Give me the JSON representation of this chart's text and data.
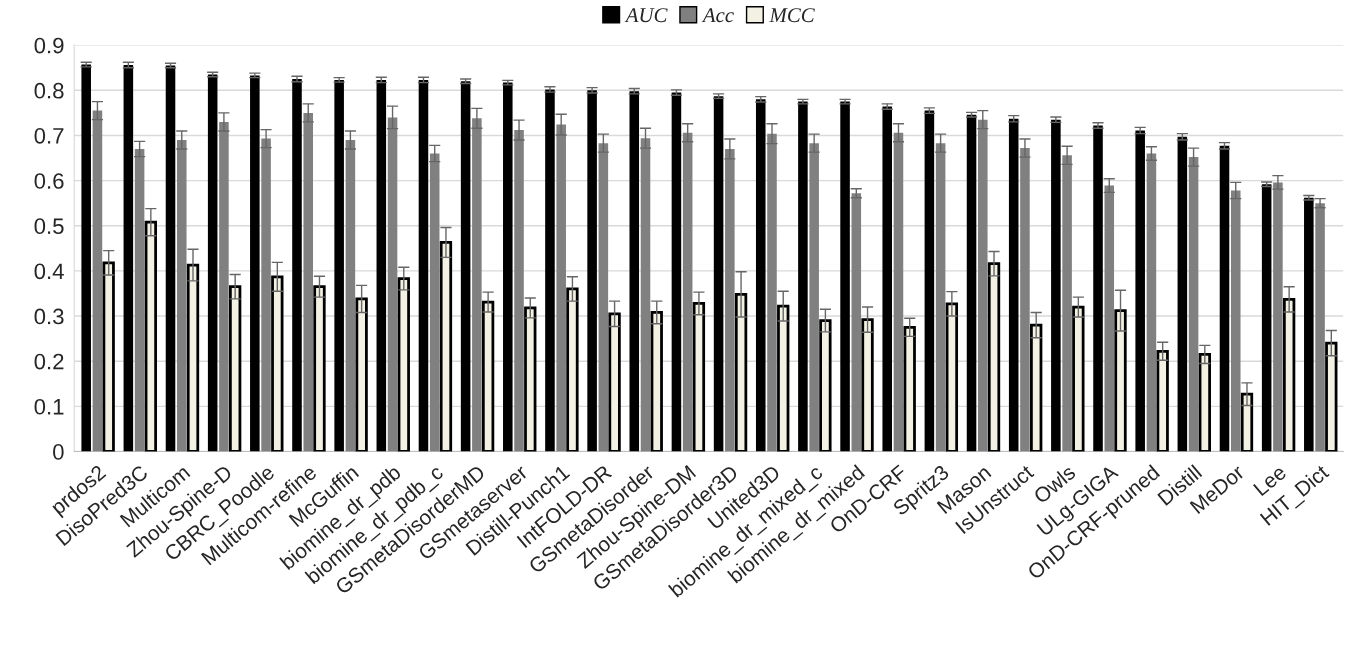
{
  "chart_data": {
    "type": "bar",
    "categories": [
      "prdos2",
      "DisoPred3C",
      "Multicom",
      "Zhou-Spine-D",
      "CBRC_Poodle",
      "Multicom-refine",
      "McGuffin",
      "biomine_dr_pdb",
      "biomine_dr_pdb_c",
      "GSmetaDisorderMD",
      "GSmetaserver",
      "Distill-Punch1",
      "IntFOLD-DR",
      "GSmetaDisorder",
      "Zhou-Spine-DM",
      "GSmetaDisorder3D",
      "United3D",
      "biomine_dr_mixed_c",
      "biomine_dr_mixed",
      "OnD-CRF",
      "Spritz3",
      "Mason",
      "IsUnstruct",
      "Owls",
      "ULg-GIGA",
      "OnD-CRF-pruned",
      "Distill",
      "MeDor",
      "Lee",
      "HIT_Dict"
    ],
    "series": [
      {
        "name": "AUC",
        "color": "#000000",
        "values": [
          0.857,
          0.856,
          0.855,
          0.835,
          0.833,
          0.825,
          0.823,
          0.823,
          0.823,
          0.82,
          0.817,
          0.802,
          0.8,
          0.798,
          0.795,
          0.787,
          0.78,
          0.775,
          0.775,
          0.764,
          0.755,
          0.746,
          0.737,
          0.735,
          0.722,
          0.711,
          0.697,
          0.677,
          0.592,
          0.562
        ],
        "errors": [
          0.005,
          0.006,
          0.005,
          0.005,
          0.005,
          0.006,
          0.005,
          0.006,
          0.006,
          0.005,
          0.005,
          0.006,
          0.006,
          0.006,
          0.006,
          0.005,
          0.006,
          0.005,
          0.005,
          0.006,
          0.006,
          0.005,
          0.007,
          0.006,
          0.006,
          0.007,
          0.007,
          0.007,
          0.005,
          0.005
        ]
      },
      {
        "name": "Acc",
        "color": "#808080",
        "values": [
          0.755,
          0.67,
          0.69,
          0.73,
          0.693,
          0.75,
          0.69,
          0.74,
          0.66,
          0.738,
          0.712,
          0.724,
          0.683,
          0.694,
          0.706,
          0.67,
          0.704,
          0.683,
          0.572,
          0.706,
          0.683,
          0.735,
          0.672,
          0.656,
          0.589,
          0.66,
          0.652,
          0.578,
          0.596,
          0.55
        ],
        "errors": [
          0.02,
          0.017,
          0.02,
          0.02,
          0.02,
          0.02,
          0.02,
          0.025,
          0.018,
          0.022,
          0.022,
          0.023,
          0.02,
          0.022,
          0.02,
          0.022,
          0.022,
          0.02,
          0.01,
          0.02,
          0.02,
          0.02,
          0.02,
          0.02,
          0.015,
          0.015,
          0.02,
          0.018,
          0.015,
          0.01
        ]
      },
      {
        "name": "MCC",
        "color": "#f3f1e4",
        "values": [
          0.418,
          0.508,
          0.413,
          0.365,
          0.387,
          0.365,
          0.338,
          0.383,
          0.463,
          0.331,
          0.318,
          0.36,
          0.305,
          0.308,
          0.328,
          0.348,
          0.322,
          0.29,
          0.292,
          0.275,
          0.327,
          0.416,
          0.28,
          0.32,
          0.312,
          0.222,
          0.215,
          0.127,
          0.337,
          0.24
        ],
        "errors": [
          0.027,
          0.03,
          0.035,
          0.027,
          0.032,
          0.023,
          0.03,
          0.025,
          0.033,
          0.022,
          0.022,
          0.027,
          0.028,
          0.025,
          0.025,
          0.05,
          0.033,
          0.025,
          0.028,
          0.02,
          0.027,
          0.027,
          0.028,
          0.022,
          0.045,
          0.02,
          0.02,
          0.025,
          0.028,
          0.028
        ]
      }
    ],
    "ylim": [
      0,
      0.9
    ],
    "yticks": [
      0,
      0.1,
      0.2,
      0.3,
      0.4,
      0.5,
      0.6,
      0.7,
      0.8,
      0.9
    ],
    "grid": "y",
    "legend": "top"
  }
}
